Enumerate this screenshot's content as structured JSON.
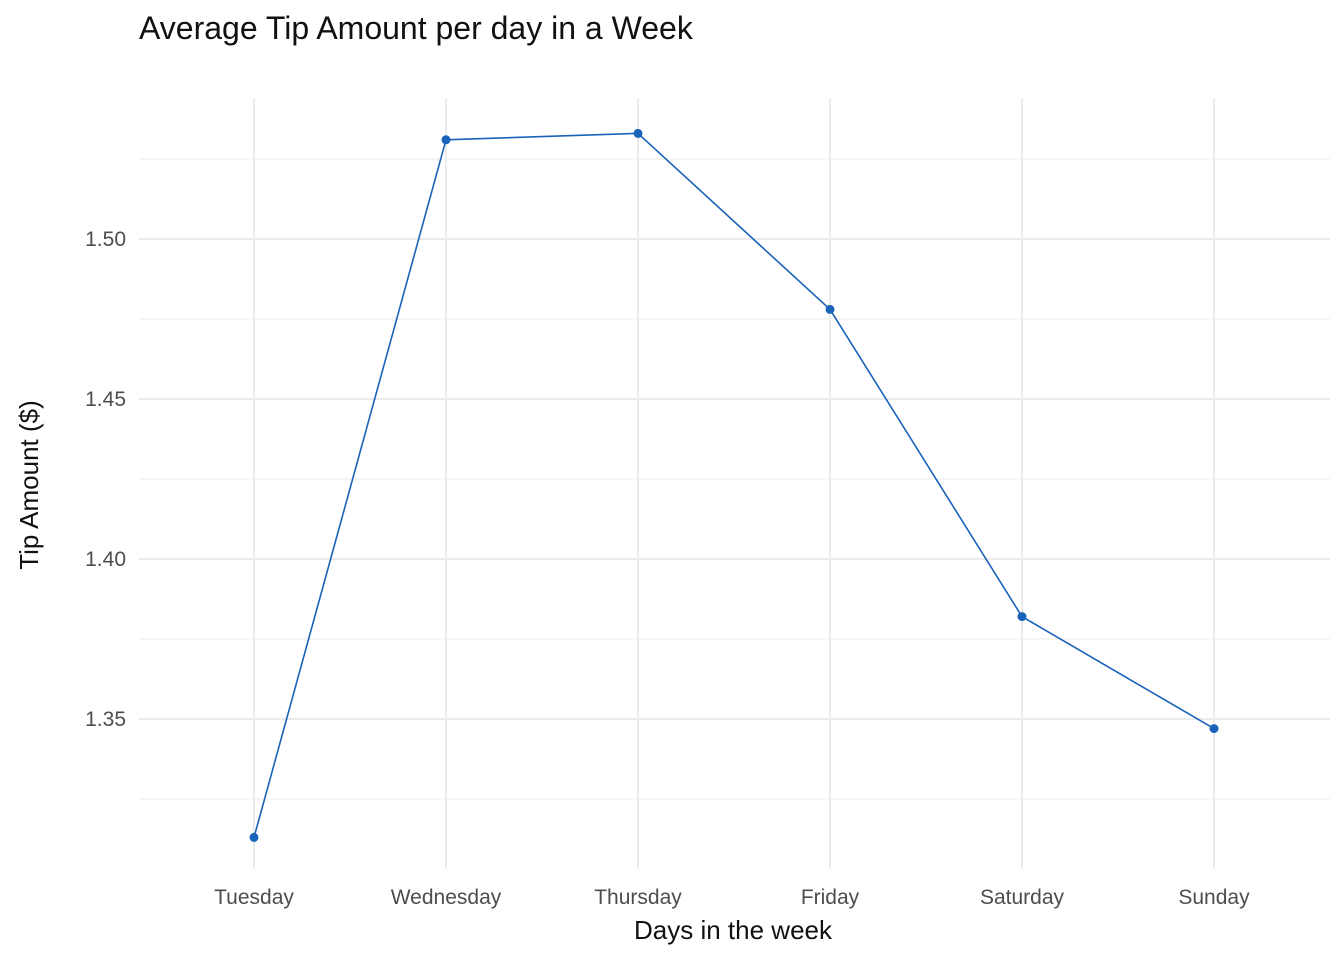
{
  "chart_data": {
    "type": "line",
    "title": "Average Tip Amount per day in a Week",
    "xlabel": "Days in the week",
    "ylabel": "Tip Amount ($)",
    "categories": [
      "Tuesday",
      "Wednesday",
      "Thursday",
      "Friday",
      "Saturday",
      "Sunday"
    ],
    "series": [
      {
        "values": [
          1.313,
          1.531,
          1.533,
          1.478,
          1.382,
          1.347
        ]
      }
    ],
    "ylim": [
      1.3,
      1.55
    ],
    "yticks": [
      1.35,
      1.4,
      1.45,
      1.5
    ],
    "ytick_labels": [
      "1.35",
      "1.40",
      "1.45",
      "1.50"
    ],
    "grid": true,
    "legend": "none",
    "colors": {
      "line": "#1a63b8",
      "grid": "#ebebeb"
    }
  }
}
